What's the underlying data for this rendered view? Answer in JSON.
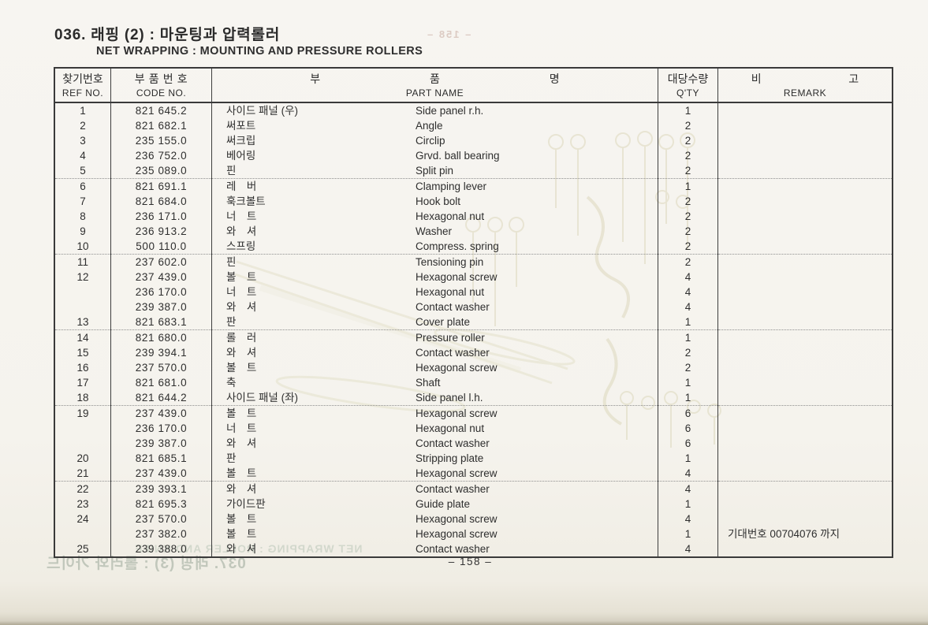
{
  "page": {
    "title": "036. 래핑 (2) : 마운팅과 압력롤러",
    "subtitle": "NET WRAPPING : MOUNTING AND PRESSURE ROLLERS",
    "page_number": "– 158 –"
  },
  "table": {
    "headers": {
      "ref_kr": "찾기번호",
      "ref_en": "REF NO.",
      "code_kr": "부 품 번 호",
      "code_en": "CODE  NO.",
      "name_kr": [
        "부",
        "품",
        "명"
      ],
      "name_en": "PART  NAME",
      "qty_kr": "대당수량",
      "qty_en": "Q'TY",
      "remark_kr": [
        "비",
        "고"
      ],
      "remark_en": "REMARK"
    },
    "rows": [
      {
        "ref": "1",
        "code": "821 645.2",
        "kr": "사이드 패널 (우)",
        "en": "Side panel r.h.",
        "qty": "1",
        "remark": "",
        "g": false
      },
      {
        "ref": "2",
        "code": "821 682.1",
        "kr": "써포트",
        "en": "Angle",
        "qty": "2",
        "remark": "",
        "g": false
      },
      {
        "ref": "3",
        "code": "235 155.0",
        "kr": "써크립",
        "en": "Circlip",
        "qty": "2",
        "remark": "",
        "g": false
      },
      {
        "ref": "4",
        "code": "236 752.0",
        "kr": "베어링",
        "en": "Grvd. ball bearing",
        "qty": "2",
        "remark": "",
        "g": false
      },
      {
        "ref": "5",
        "code": "235 089.0",
        "kr": "핀",
        "en": "Split pin",
        "qty": "2",
        "remark": "",
        "g": true
      },
      {
        "ref": "6",
        "code": "821 691.1",
        "kr": "레　버",
        "en": "Clamping lever",
        "qty": "1",
        "remark": "",
        "g": false
      },
      {
        "ref": "7",
        "code": "821 684.0",
        "kr": "훅크볼트",
        "en": "Hook bolt",
        "qty": "2",
        "remark": "",
        "g": false
      },
      {
        "ref": "8",
        "code": "236 171.0",
        "kr": "너　트",
        "en": "Hexagonal nut",
        "qty": "2",
        "remark": "",
        "g": false
      },
      {
        "ref": "9",
        "code": "236 913.2",
        "kr": "와　셔",
        "en": "Washer",
        "qty": "2",
        "remark": "",
        "g": false
      },
      {
        "ref": "10",
        "code": "500 110.0",
        "kr": "스프링",
        "en": "Compress. spring",
        "qty": "2",
        "remark": "",
        "g": true
      },
      {
        "ref": "11",
        "code": "237 602.0",
        "kr": "핀",
        "en": "Tensioning pin",
        "qty": "2",
        "remark": "",
        "g": false
      },
      {
        "ref": "12",
        "code": "237 439.0",
        "kr": "볼　트",
        "en": "Hexagonal screw",
        "qty": "4",
        "remark": "",
        "g": false
      },
      {
        "ref": "",
        "code": "236 170.0",
        "kr": "너　트",
        "en": "Hexagonal nut",
        "qty": "4",
        "remark": "",
        "g": false
      },
      {
        "ref": "",
        "code": "239 387.0",
        "kr": "와　셔",
        "en": "Contact washer",
        "qty": "4",
        "remark": "",
        "g": false
      },
      {
        "ref": "13",
        "code": "821 683.1",
        "kr": "판",
        "en": "Cover plate",
        "qty": "1",
        "remark": "",
        "g": true
      },
      {
        "ref": "14",
        "code": "821 680.0",
        "kr": "롤　러",
        "en": "Pressure roller",
        "qty": "1",
        "remark": "",
        "g": false
      },
      {
        "ref": "15",
        "code": "239 394.1",
        "kr": "와　셔",
        "en": "Contact washer",
        "qty": "2",
        "remark": "",
        "g": false
      },
      {
        "ref": "16",
        "code": "237 570.0",
        "kr": "볼　트",
        "en": "Hexagonal screw",
        "qty": "2",
        "remark": "",
        "g": false
      },
      {
        "ref": "17",
        "code": "821 681.0",
        "kr": "축",
        "en": "Shaft",
        "qty": "1",
        "remark": "",
        "g": false
      },
      {
        "ref": "18",
        "code": "821 644.2",
        "kr": "사이드 패널 (좌)",
        "en": "Side panel l.h.",
        "qty": "1",
        "remark": "",
        "g": true
      },
      {
        "ref": "19",
        "code": "237 439.0",
        "kr": "볼　트",
        "en": "Hexagonal screw",
        "qty": "6",
        "remark": "",
        "g": false
      },
      {
        "ref": "",
        "code": "236 170.0",
        "kr": "너　트",
        "en": "Hexagonal nut",
        "qty": "6",
        "remark": "",
        "g": false
      },
      {
        "ref": "",
        "code": "239 387.0",
        "kr": "와　셔",
        "en": "Contact washer",
        "qty": "6",
        "remark": "",
        "g": false
      },
      {
        "ref": "20",
        "code": "821 685.1",
        "kr": "판",
        "en": "Stripping plate",
        "qty": "1",
        "remark": "",
        "g": false
      },
      {
        "ref": "21",
        "code": "237 439.0",
        "kr": "볼　트",
        "en": "Hexagonal screw",
        "qty": "4",
        "remark": "",
        "g": true
      },
      {
        "ref": "22",
        "code": "239 393.1",
        "kr": "와　셔",
        "en": "Contact washer",
        "qty": "4",
        "remark": "",
        "g": false
      },
      {
        "ref": "23",
        "code": "821 695.3",
        "kr": "가이드판",
        "en": "Guide plate",
        "qty": "1",
        "remark": "",
        "g": false
      },
      {
        "ref": "24",
        "code": "237 570.0",
        "kr": "볼　트",
        "en": "Hexagonal screw",
        "qty": "4",
        "remark": "",
        "g": false
      },
      {
        "ref": "",
        "code": "237 382.0",
        "kr": "볼　트",
        "en": "Hexagonal screw",
        "qty": "1",
        "remark": "기대번호 00704076 까지",
        "g": false
      },
      {
        "ref": "25",
        "code": "239 388.0",
        "kr": "와　셔",
        "en": "Contact washer",
        "qty": "4",
        "remark": "",
        "g": false
      }
    ]
  },
  "ghost": {
    "top_page_number": "– 158 –",
    "bottom_line1": "NET WRAPPING : ROLLER AND KNIFE",
    "bottom_line2": "037. 래핑 (3) : 롤러와 가이드"
  }
}
